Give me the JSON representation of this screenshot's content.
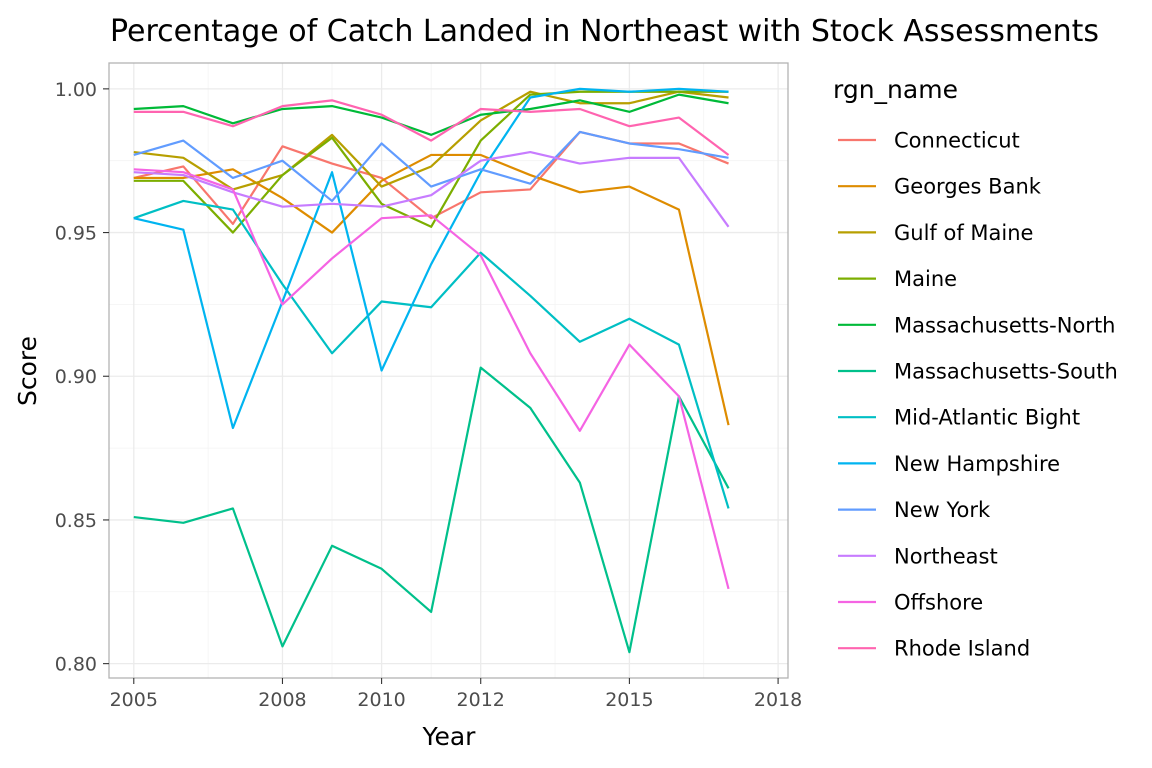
{
  "chart_data": {
    "type": "line",
    "title": "Percentage of Catch Landed in Northeast with Stock Assessments",
    "xlabel": "Year",
    "ylabel": "Score",
    "xlim": [
      2004.5,
      2018.2
    ],
    "ylim": [
      0.795,
      1.009
    ],
    "x_ticks": [
      2005,
      2008,
      2010,
      2012,
      2015,
      2018
    ],
    "x_tick_labels": [
      "2005",
      "2008",
      "2010",
      "2012",
      "2015",
      "2018"
    ],
    "y_ticks": [
      0.8,
      0.85,
      0.9,
      0.95,
      1.0
    ],
    "y_tick_labels": [
      "0.80",
      "0.85",
      "0.90",
      "0.95",
      "1.00"
    ],
    "x": [
      2005,
      2006,
      2007,
      2008,
      2009,
      2010,
      2011,
      2012,
      2013,
      2014,
      2015,
      2016,
      2017
    ],
    "grid": true,
    "legend": {
      "title": "rgn_name",
      "position": "right"
    },
    "series": [
      {
        "name": "Connecticut",
        "color": "#F8766D",
        "values": [
          0.969,
          0.973,
          0.953,
          0.98,
          0.974,
          0.969,
          0.955,
          0.964,
          0.965,
          0.985,
          0.981,
          0.981,
          0.974
        ]
      },
      {
        "name": "Georges Bank",
        "color": "#DE8C00",
        "values": [
          0.969,
          0.969,
          0.972,
          0.962,
          0.95,
          0.968,
          0.977,
          0.977,
          0.97,
          0.964,
          0.966,
          0.958,
          0.883
        ]
      },
      {
        "name": "Gulf of Maine",
        "color": "#B79F00",
        "values": [
          0.978,
          0.976,
          0.965,
          0.97,
          0.984,
          0.966,
          0.973,
          0.989,
          0.999,
          0.995,
          0.995,
          0.999,
          0.997
        ]
      },
      {
        "name": "Maine",
        "color": "#7CAE00",
        "values": [
          0.968,
          0.968,
          0.95,
          0.97,
          0.983,
          0.96,
          0.952,
          0.982,
          0.998,
          0.999,
          0.999,
          0.999,
          0.999
        ]
      },
      {
        "name": "Massachusetts-North",
        "color": "#00BA38",
        "values": [
          0.993,
          0.994,
          0.988,
          0.993,
          0.994,
          0.99,
          0.984,
          0.991,
          0.993,
          0.996,
          0.992,
          0.998,
          0.995
        ]
      },
      {
        "name": "Massachusetts-South",
        "color": "#00C08B",
        "values": [
          0.851,
          0.849,
          0.854,
          0.806,
          0.841,
          0.833,
          0.818,
          0.903,
          0.889,
          0.863,
          0.804,
          0.893,
          0.861
        ]
      },
      {
        "name": "Mid-Atlantic Bight",
        "color": "#00BFC4",
        "values": [
          0.955,
          0.961,
          0.958,
          0.932,
          0.908,
          0.926,
          0.924,
          0.943,
          0.928,
          0.912,
          0.92,
          0.911,
          0.854
        ]
      },
      {
        "name": "New Hampshire",
        "color": "#00B4F0",
        "values": [
          0.955,
          0.951,
          0.882,
          0.926,
          0.971,
          0.902,
          0.939,
          0.971,
          0.997,
          1.0,
          0.999,
          1.0,
          0.999
        ]
      },
      {
        "name": "New York",
        "color": "#619CFF",
        "values": [
          0.977,
          0.982,
          0.969,
          0.975,
          0.961,
          0.981,
          0.966,
          0.972,
          0.967,
          0.985,
          0.981,
          0.979,
          0.976
        ]
      },
      {
        "name": "Northeast",
        "color": "#C77CFF",
        "values": [
          0.971,
          0.97,
          0.964,
          0.959,
          0.96,
          0.959,
          0.963,
          0.975,
          0.978,
          0.974,
          0.976,
          0.976,
          0.952
        ]
      },
      {
        "name": "Offshore",
        "color": "#F564E3",
        "values": [
          0.972,
          0.971,
          0.965,
          0.925,
          0.941,
          0.955,
          0.956,
          0.942,
          0.908,
          0.881,
          0.911,
          0.893,
          0.826
        ]
      },
      {
        "name": "Rhode Island",
        "color": "#FF64B0",
        "values": [
          0.992,
          0.992,
          0.987,
          0.994,
          0.996,
          0.991,
          0.982,
          0.993,
          0.992,
          0.993,
          0.987,
          0.99,
          0.977
        ]
      }
    ]
  }
}
